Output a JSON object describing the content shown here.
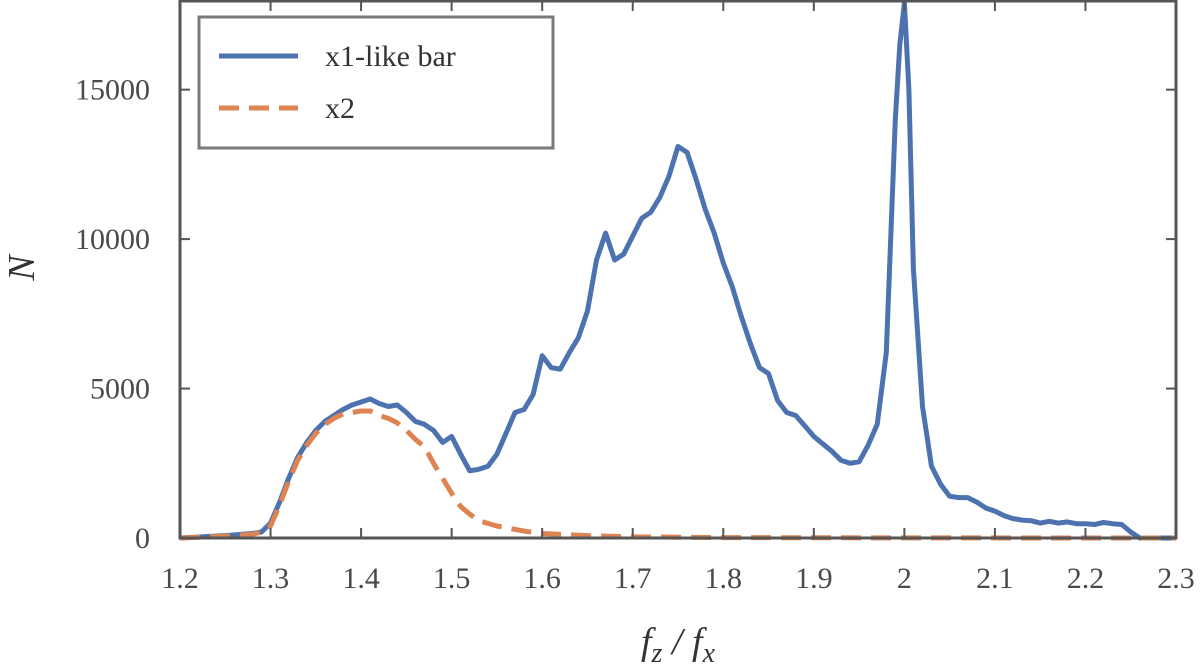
{
  "chart_data": {
    "type": "line",
    "xlabel": "f_z / f_x",
    "ylabel": "N",
    "xlim": [
      1.2,
      2.3
    ],
    "ylim": [
      0,
      18000
    ],
    "xticks": [
      1.2,
      1.3,
      1.4,
      1.5,
      1.6,
      1.7,
      1.8,
      1.9,
      2.0,
      2.1,
      2.2,
      2.3
    ],
    "xtick_labels": [
      "1.2",
      "1.3",
      "1.4",
      "1.5",
      "1.6",
      "1.7",
      "1.8",
      "1.9",
      "2",
      "2.1",
      "2.2",
      "2.3"
    ],
    "yticks": [
      0,
      5000,
      10000,
      15000
    ],
    "ytick_labels": [
      "0",
      "5000",
      "10000",
      "15000"
    ],
    "grid": false,
    "legend": {
      "position": "top-left"
    },
    "series": [
      {
        "name": "x1-like bar",
        "color": "#4c72b0",
        "style": "solid",
        "x": [
          1.2,
          1.25,
          1.28,
          1.29,
          1.3,
          1.31,
          1.32,
          1.33,
          1.34,
          1.35,
          1.36,
          1.37,
          1.38,
          1.39,
          1.4,
          1.41,
          1.42,
          1.43,
          1.44,
          1.45,
          1.46,
          1.47,
          1.48,
          1.49,
          1.5,
          1.51,
          1.52,
          1.53,
          1.54,
          1.55,
          1.56,
          1.57,
          1.58,
          1.59,
          1.6,
          1.61,
          1.62,
          1.63,
          1.64,
          1.65,
          1.66,
          1.67,
          1.68,
          1.69,
          1.7,
          1.71,
          1.72,
          1.73,
          1.74,
          1.75,
          1.76,
          1.77,
          1.78,
          1.79,
          1.8,
          1.81,
          1.82,
          1.83,
          1.84,
          1.85,
          1.86,
          1.87,
          1.88,
          1.89,
          1.9,
          1.91,
          1.92,
          1.93,
          1.94,
          1.95,
          1.96,
          1.97,
          1.98,
          1.99,
          1.995,
          2.0,
          2.005,
          2.01,
          2.02,
          2.03,
          2.04,
          2.05,
          2.06,
          2.07,
          2.08,
          2.09,
          2.1,
          2.11,
          2.12,
          2.13,
          2.14,
          2.15,
          2.16,
          2.17,
          2.18,
          2.19,
          2.2,
          2.21,
          2.22,
          2.23,
          2.24,
          2.25,
          2.26,
          2.27,
          2.3
        ],
        "y": [
          0,
          80,
          150,
          200,
          500,
          1200,
          2000,
          2700,
          3200,
          3600,
          3900,
          4100,
          4300,
          4450,
          4550,
          4650,
          4500,
          4400,
          4450,
          4200,
          3900,
          3800,
          3600,
          3200,
          3400,
          2800,
          2250,
          2300,
          2400,
          2800,
          3500,
          4200,
          4300,
          4800,
          6100,
          5700,
          5650,
          6200,
          6700,
          7600,
          9300,
          10200,
          9300,
          9500,
          10100,
          10700,
          10900,
          11400,
          12100,
          13100,
          12900,
          12000,
          11000,
          10200,
          9200,
          8400,
          7400,
          6500,
          5700,
          5500,
          4600,
          4200,
          4100,
          3750,
          3400,
          3150,
          2900,
          2600,
          2500,
          2550,
          3100,
          3800,
          6200,
          14000,
          16500,
          17900,
          15000,
          9000,
          4400,
          2400,
          1800,
          1400,
          1350,
          1350,
          1200,
          1000,
          900,
          750,
          650,
          600,
          580,
          500,
          560,
          500,
          540,
          480,
          480,
          450,
          520,
          480,
          450,
          200,
          0,
          0,
          0
        ]
      },
      {
        "name": "x2",
        "color": "#dd8452",
        "style": "dashed",
        "x": [
          1.2,
          1.25,
          1.28,
          1.29,
          1.3,
          1.31,
          1.32,
          1.33,
          1.34,
          1.35,
          1.36,
          1.37,
          1.38,
          1.39,
          1.4,
          1.41,
          1.42,
          1.43,
          1.44,
          1.45,
          1.46,
          1.47,
          1.48,
          1.49,
          1.5,
          1.51,
          1.52,
          1.53,
          1.55,
          1.58,
          1.6,
          1.65,
          1.7,
          1.8,
          2.0,
          2.3
        ],
        "y": [
          0,
          60,
          120,
          200,
          400,
          1100,
          1900,
          2600,
          3100,
          3500,
          3800,
          4000,
          4150,
          4200,
          4250,
          4250,
          4100,
          4000,
          3850,
          3600,
          3300,
          3050,
          2500,
          2000,
          1500,
          1050,
          800,
          580,
          400,
          230,
          150,
          80,
          40,
          15,
          5,
          0
        ]
      }
    ]
  }
}
